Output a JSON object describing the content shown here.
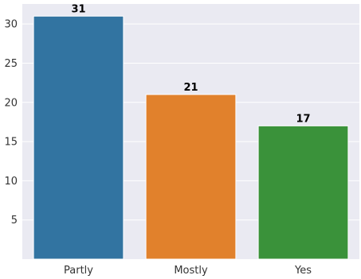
{
  "chart_data": {
    "type": "bar",
    "categories": [
      "Partly",
      "Mostly",
      "Yes"
    ],
    "values": [
      31,
      21,
      17
    ],
    "data_labels": [
      "31",
      "21",
      "17"
    ],
    "colors": [
      "#3274a1",
      "#e1812c",
      "#3a923a"
    ],
    "background": "#eaeaf2",
    "title": "",
    "xlabel": "",
    "ylabel": "",
    "ylim": [
      0,
      32.55
    ],
    "yticks": [
      5,
      10,
      15,
      20,
      25,
      30
    ],
    "ytick_labels": [
      "5",
      "10",
      "15",
      "20",
      "25",
      "30"
    ],
    "grid": "y"
  }
}
